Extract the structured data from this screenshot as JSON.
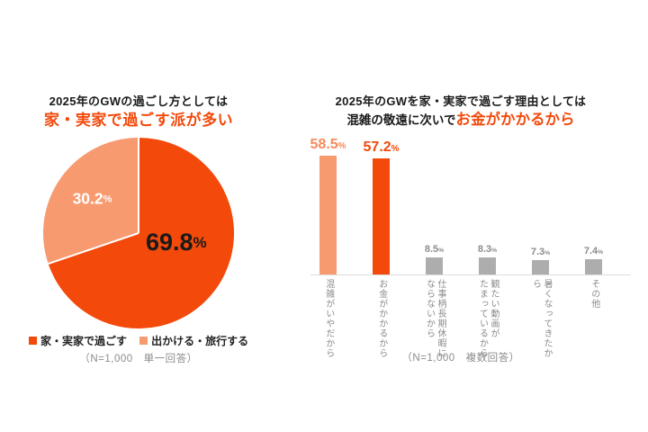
{
  "colors": {
    "accent_dark_orange": "#F3490B",
    "accent_light_orange": "#F89A70",
    "neutral_gray_bar": "#ADADAD",
    "text_dark": "#1a1a1a",
    "text_gray": "#8C8C8C",
    "axis_line": "#DCDCDC",
    "pie_label_dark_slice": "#1a1a1a",
    "pie_label_light_slice": "#ffffff"
  },
  "chart_data": [
    {
      "type": "pie",
      "title_line1": "2025年のGWの過ごし方としては",
      "title_line2": "家・実家で過ごす派が多い",
      "slices": [
        {
          "label": "家・実家で過ごす",
          "value": 69.8,
          "display": "69.8",
          "unit": "%",
          "color": "#F3490B",
          "label_color": "#1a1a1a"
        },
        {
          "label": "出かける・旅行する",
          "value": 30.2,
          "display": "30.2",
          "unit": "%",
          "color": "#F89A70",
          "label_color": "#ffffff"
        }
      ],
      "start_angle_deg": 0,
      "direction": "clockwise",
      "note": "（N=1,000　単一回答）"
    },
    {
      "type": "bar",
      "title_line1": "2025年のGWを家・実家で過ごす理由としては",
      "title_line2_black": "混雑の敬遠に次いで",
      "title_line2_orange": "お金がかかるから",
      "categories": [
        "混雑がいやだから",
        "お金がかかるから",
        "仕事柄長期休暇に\nならないから",
        "観たい動画が\nたまっているから",
        "暑くなってきたから",
        "その他"
      ],
      "values": [
        58.5,
        57.2,
        8.5,
        8.3,
        7.3,
        7.4
      ],
      "value_unit": "%",
      "bar_colors": [
        "#F89A70",
        "#F3490B",
        "#ADADAD",
        "#ADADAD",
        "#ADADAD",
        "#ADADAD"
      ],
      "value_label_colors": [
        "#F8895B",
        "#F3490B",
        "#8C8C8C",
        "#8C8C8C",
        "#8C8C8C",
        "#8C8C8C"
      ],
      "ylim": [
        0,
        65
      ],
      "grid": false,
      "legend": "none",
      "note": "（N=1,000　複数回答）"
    }
  ]
}
